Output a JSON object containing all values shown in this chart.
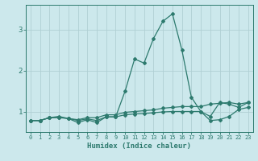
{
  "xlabel": "Humidex (Indice chaleur)",
  "background_color": "#cce8ec",
  "grid_color": "#b0cfd4",
  "line_color": "#2d7a6e",
  "x_values": [
    0,
    1,
    2,
    3,
    4,
    5,
    6,
    7,
    8,
    9,
    10,
    11,
    12,
    13,
    14,
    15,
    16,
    17,
    18,
    19,
    20,
    21,
    22,
    23
  ],
  "series": [
    [
      0.78,
      0.78,
      0.85,
      0.85,
      0.83,
      0.78,
      0.82,
      0.78,
      0.87,
      0.87,
      0.92,
      0.94,
      0.95,
      0.97,
      0.99,
      1.0,
      1.0,
      1.0,
      1.0,
      0.78,
      0.8,
      0.88,
      1.05,
      1.1
    ],
    [
      0.78,
      0.78,
      0.85,
      0.86,
      0.83,
      0.8,
      0.85,
      0.85,
      0.92,
      0.92,
      0.98,
      1.0,
      1.02,
      1.04,
      1.08,
      1.1,
      1.12,
      1.12,
      1.12,
      1.18,
      1.2,
      1.22,
      1.18,
      1.22
    ],
    [
      0.78,
      0.78,
      0.85,
      0.88,
      0.83,
      0.73,
      0.8,
      0.73,
      0.87,
      0.87,
      1.5,
      2.28,
      2.18,
      2.78,
      3.2,
      3.38,
      2.5,
      1.35,
      1.0,
      0.88,
      1.22,
      1.18,
      1.1,
      1.22
    ]
  ],
  "ylim": [
    0.5,
    3.6
  ],
  "yticks": [
    1,
    2,
    3
  ],
  "ytick_labels": [
    "1",
    "2",
    "3"
  ],
  "xlim": [
    -0.5,
    23.5
  ],
  "xticks": [
    0,
    1,
    2,
    3,
    4,
    5,
    6,
    7,
    8,
    9,
    10,
    11,
    12,
    13,
    14,
    15,
    16,
    17,
    18,
    19,
    20,
    21,
    22,
    23
  ],
  "xtick_labels": [
    "0",
    "1",
    "2",
    "3",
    "4",
    "5",
    "6",
    "7",
    "8",
    "9",
    "10",
    "11",
    "12",
    "13",
    "14",
    "15",
    "16",
    "17",
    "18",
    "19",
    "20",
    "21",
    "22",
    "23"
  ]
}
